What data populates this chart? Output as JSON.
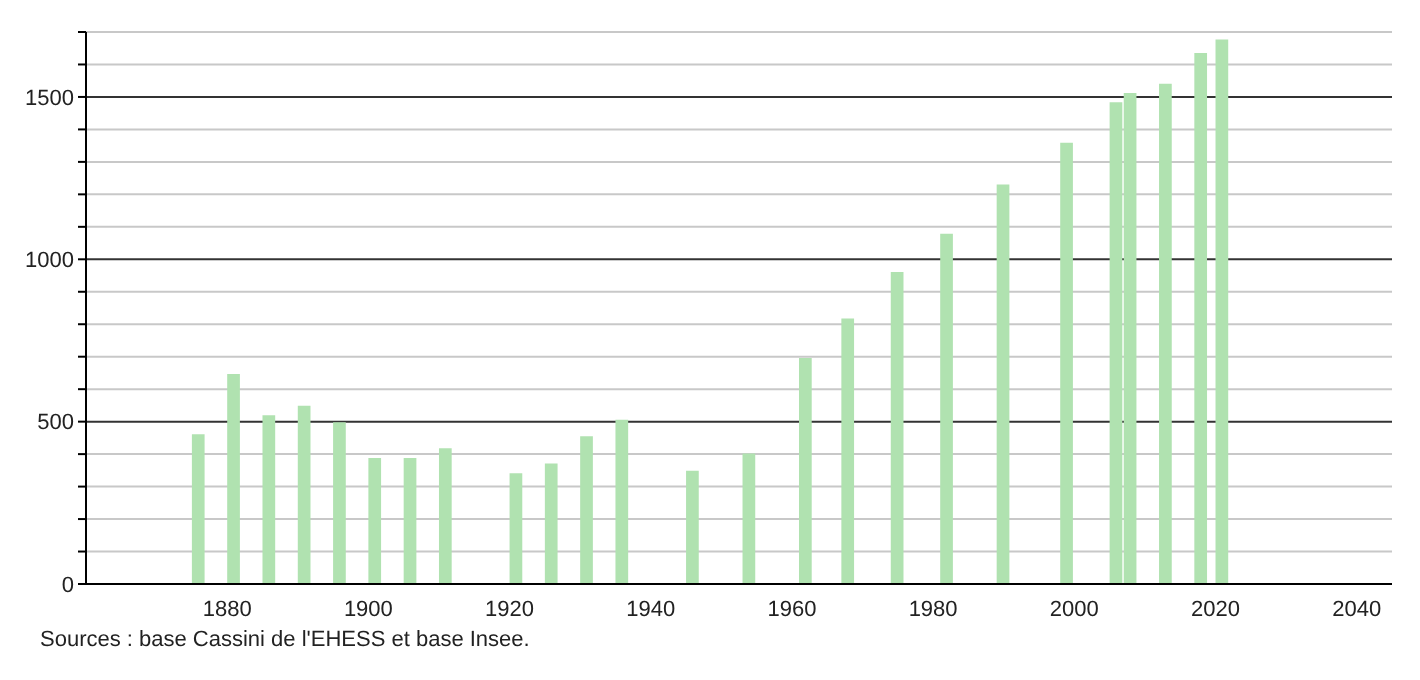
{
  "chart_data": {
    "type": "bar",
    "x": [
      1876,
      1881,
      1886,
      1891,
      1896,
      1901,
      1906,
      1911,
      1921,
      1926,
      1931,
      1936,
      1946,
      1954,
      1962,
      1968,
      1975,
      1982,
      1990,
      1999,
      2006,
      2008,
      2013,
      2018,
      2021
    ],
    "values": [
      461,
      647,
      520,
      549,
      498,
      388,
      388,
      418,
      341,
      371,
      455,
      506,
      349,
      402,
      696,
      818,
      961,
      1079,
      1230,
      1359,
      1484,
      1512,
      1541,
      1635,
      1677
    ],
    "color": "#b0e2b0",
    "xlim": [
      1860,
      2045
    ],
    "xticks": [
      1880,
      1900,
      1920,
      1940,
      1960,
      1980,
      2000,
      2020,
      2040
    ],
    "ylim": [
      0,
      1700
    ],
    "yticks": [
      0,
      {
        "value": 100,
        "label": null
      },
      {
        "value": 200,
        "label": null
      },
      {
        "value": 300,
        "label": null
      },
      {
        "value": 400,
        "label": null
      },
      500,
      {
        "value": 600,
        "label": null
      },
      {
        "value": 700,
        "label": null
      },
      {
        "value": 800,
        "label": null
      },
      {
        "value": 900,
        "label": null
      },
      1000,
      {
        "value": 1100,
        "label": null
      },
      {
        "value": 1200,
        "label": null
      },
      {
        "value": 1300,
        "label": null
      },
      {
        "value": 1400,
        "label": null
      },
      1500,
      {
        "value": 1600,
        "label": null
      },
      {
        "value": 1700,
        "label": null
      }
    ],
    "grid": "y",
    "annotations": [
      "Sources : base Cassini de l'EHESS et base Insee."
    ]
  }
}
